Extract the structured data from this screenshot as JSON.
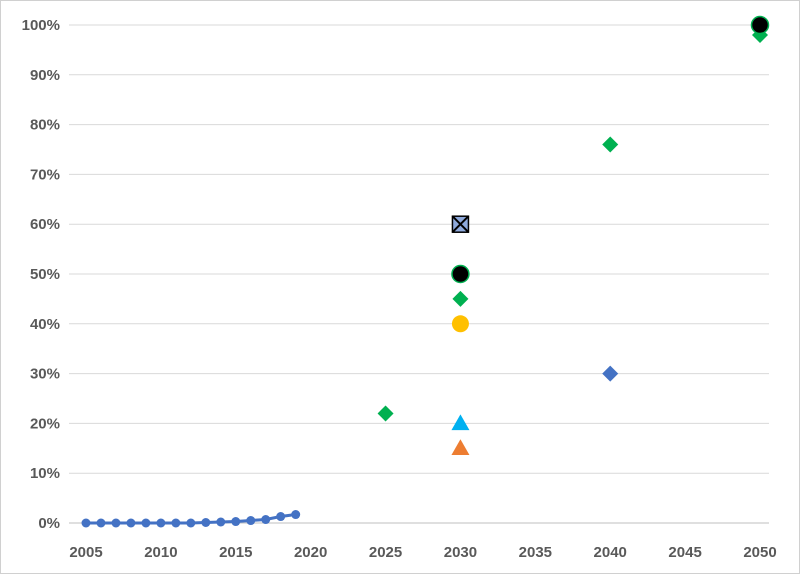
{
  "chart_data": {
    "type": "scatter",
    "title": "",
    "xlabel": "",
    "ylabel": "",
    "xlim": [
      2005,
      2050
    ],
    "ylim": [
      0,
      100
    ],
    "x_ticks": [
      2005,
      2010,
      2015,
      2020,
      2025,
      2030,
      2035,
      2040,
      2045,
      2050
    ],
    "x_tick_labels": [
      "2005",
      "2010",
      "2015",
      "2020",
      "2025",
      "2030",
      "2035",
      "2040",
      "2045",
      "2050"
    ],
    "y_ticks": [
      0,
      10,
      20,
      30,
      40,
      50,
      60,
      70,
      80,
      90,
      100
    ],
    "y_tick_labels": [
      "0%",
      "10%",
      "20%",
      "30%",
      "40%",
      "50%",
      "60%",
      "70%",
      "80%",
      "90%",
      "100%"
    ],
    "grid": "horizontal",
    "legend": "none",
    "series": [
      {
        "marker": "circle-line",
        "color": "#4472C4",
        "points": [
          [
            2005,
            0.0
          ],
          [
            2006,
            0.0
          ],
          [
            2007,
            0.0
          ],
          [
            2008,
            0.0
          ],
          [
            2009,
            0.0
          ],
          [
            2010,
            0.0
          ],
          [
            2011,
            0.0
          ],
          [
            2012,
            0.0
          ],
          [
            2013,
            0.1
          ],
          [
            2014,
            0.2
          ],
          [
            2015,
            0.3
          ],
          [
            2016,
            0.5
          ],
          [
            2017,
            0.7
          ],
          [
            2018,
            1.3
          ],
          [
            2019,
            1.7
          ]
        ]
      },
      {
        "marker": "diamond",
        "color": "#00B050",
        "points": [
          [
            2025,
            22
          ],
          [
            2030,
            45
          ],
          [
            2040,
            76
          ],
          [
            2050,
            98
          ]
        ]
      },
      {
        "marker": "diamond",
        "color": "#4472C4",
        "points": [
          [
            2040,
            30
          ]
        ]
      },
      {
        "marker": "circle",
        "color": "#000000",
        "stroke": "#00B050",
        "points": [
          [
            2030,
            50
          ],
          [
            2050,
            100
          ]
        ]
      },
      {
        "marker": "circle",
        "color": "#FFC000",
        "points": [
          [
            2030,
            40
          ]
        ]
      },
      {
        "marker": "square-x",
        "color": "#8EA9DB",
        "points": [
          [
            2030,
            60
          ]
        ]
      },
      {
        "marker": "triangle",
        "color": "#00B0F0",
        "points": [
          [
            2030,
            20
          ]
        ]
      },
      {
        "marker": "triangle",
        "color": "#ED7D31",
        "points": [
          [
            2030,
            15
          ]
        ]
      }
    ]
  }
}
